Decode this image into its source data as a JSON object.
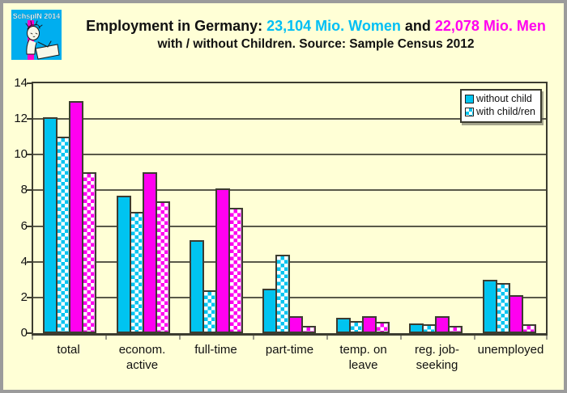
{
  "logo": {
    "text": "SchspIN 2014"
  },
  "title": {
    "prefix": "Employment in Germany: ",
    "women": "23,104 Mio. Women",
    "middle": " and ",
    "men": "22,078 Mio. Men",
    "line2": "with / without Children. Source:  Sample Census 2012"
  },
  "legend": {
    "items": [
      {
        "label": "without child",
        "pattern": "solid"
      },
      {
        "label": "with child/ren",
        "pattern": "checker"
      }
    ]
  },
  "colors": {
    "women_cyan": "#00c4f0",
    "men_magenta": "#ff00f0",
    "title_cyan": "#00bff5",
    "title_magenta": "#ff00f0",
    "background": "#ffffd6",
    "plot_line": "#3c3c30",
    "outer_border": "#9b9b9b",
    "logo_background": "#00aeef",
    "logo_stripe": "#ff00cc"
  },
  "chart_data": {
    "type": "bar",
    "title": "Employment in Germany: 23,104 Mio. Women and 22,078 Mio. Men with / without Children. Source: Sample Census 2012",
    "unit": "Mio. persons",
    "categories": [
      "total",
      "econom.\nactive",
      "full-time",
      "part-time",
      "temp. on\nleave",
      "reg. job-\nseeking",
      "unemployed"
    ],
    "series": [
      {
        "name": "Women without child",
        "style": "s-cyan",
        "values": [
          12.1,
          7.7,
          5.2,
          2.5,
          0.85,
          0.55,
          3.0
        ]
      },
      {
        "name": "Women with child/ren",
        "style": "c-cyan",
        "values": [
          11.0,
          6.8,
          2.4,
          4.4,
          0.7,
          0.5,
          2.8
        ]
      },
      {
        "name": "Men without child",
        "style": "s-magenta",
        "values": [
          13.0,
          9.0,
          8.1,
          0.95,
          0.95,
          0.95,
          2.15
        ]
      },
      {
        "name": "Men with child/ren",
        "style": "c-magenta",
        "values": [
          9.0,
          7.4,
          7.0,
          0.4,
          0.65,
          0.4,
          0.5
        ]
      }
    ],
    "ylim": [
      0,
      14
    ],
    "yticks": [
      0,
      2,
      4,
      6,
      8,
      10,
      12,
      14
    ],
    "grid": "horizontal",
    "legend_position": "top-right"
  }
}
